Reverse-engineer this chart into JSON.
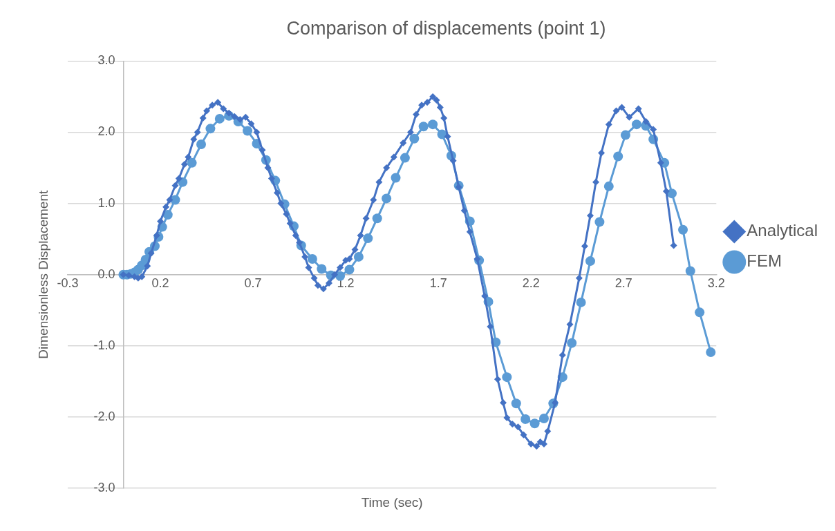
{
  "chart_data": {
    "type": "line",
    "title": "Comparison of displacements (point 1)",
    "xlabel": "Time (sec)",
    "ylabel": "Dimensionless Displacement",
    "xlim": [
      -0.3,
      3.2
    ],
    "xticks": [
      -0.3,
      0.2,
      0.7,
      1.2,
      1.7,
      2.2,
      2.7,
      3.2
    ],
    "ylim": [
      -3,
      3
    ],
    "yticks": [
      {
        "value": -3,
        "label": "-3.0"
      },
      {
        "value": -2,
        "label": "-2.0"
      },
      {
        "value": -1,
        "label": "-1.0"
      },
      {
        "value": 0,
        "label": "0.0"
      },
      {
        "value": 1,
        "label": "1.0"
      },
      {
        "value": 2,
        "label": "2.0"
      },
      {
        "value": 3,
        "label": "3.0"
      }
    ],
    "grid": "y",
    "legend": "right",
    "series": [
      {
        "name": "Analytical",
        "color": "#4472c4",
        "marker": "diamond",
        "x": [
          0,
          0.03,
          0.06,
          0.08,
          0.1,
          0.13,
          0.15,
          0.18,
          0.2,
          0.23,
          0.25,
          0.28,
          0.3,
          0.33,
          0.35,
          0.38,
          0.4,
          0.43,
          0.45,
          0.48,
          0.51,
          0.54,
          0.57,
          0.6,
          0.63,
          0.66,
          0.69,
          0.72,
          0.75,
          0.78,
          0.8,
          0.83,
          0.85,
          0.88,
          0.9,
          0.93,
          0.95,
          0.98,
          1.0,
          1.03,
          1.05,
          1.08,
          1.11,
          1.14,
          1.17,
          1.2,
          1.22,
          1.25,
          1.28,
          1.31,
          1.35,
          1.38,
          1.42,
          1.46,
          1.51,
          1.55,
          1.58,
          1.61,
          1.64,
          1.67,
          1.69,
          1.71,
          1.73,
          1.75,
          1.78,
          1.81,
          1.84,
          1.87,
          1.91,
          1.95,
          1.98,
          2.02,
          2.05,
          2.07,
          2.1,
          2.13,
          2.16,
          2.2,
          2.23,
          2.25,
          2.27,
          2.29,
          2.33,
          2.37,
          2.41,
          2.46,
          2.49,
          2.52,
          2.55,
          2.58,
          2.62,
          2.66,
          2.69,
          2.73,
          2.78,
          2.82,
          2.86,
          2.9,
          2.93,
          2.97
        ],
        "values": [
          0,
          -0.01,
          -0.03,
          -0.05,
          -0.03,
          0.12,
          0.3,
          0.55,
          0.75,
          0.95,
          1.05,
          1.25,
          1.35,
          1.55,
          1.65,
          1.9,
          2.0,
          2.2,
          2.3,
          2.38,
          2.42,
          2.33,
          2.27,
          2.22,
          2.18,
          2.21,
          2.12,
          2.0,
          1.75,
          1.5,
          1.35,
          1.15,
          1.0,
          0.85,
          0.72,
          0.55,
          0.45,
          0.25,
          0.1,
          -0.05,
          -0.15,
          -0.2,
          -0.12,
          0.0,
          0.1,
          0.2,
          0.22,
          0.35,
          0.55,
          0.79,
          1.05,
          1.3,
          1.5,
          1.65,
          1.85,
          2.0,
          2.25,
          2.38,
          2.42,
          2.5,
          2.45,
          2.35,
          2.2,
          1.94,
          1.6,
          1.23,
          0.9,
          0.6,
          0.22,
          -0.3,
          -0.73,
          -1.47,
          -1.8,
          -2.01,
          -2.1,
          -2.14,
          -2.25,
          -2.38,
          -2.41,
          -2.35,
          -2.38,
          -2.2,
          -1.8,
          -1.13,
          -0.7,
          -0.05,
          0.4,
          0.83,
          1.3,
          1.71,
          2.11,
          2.3,
          2.35,
          2.21,
          2.33,
          2.15,
          2.04,
          1.57,
          1.17,
          0.41
        ]
      },
      {
        "name": "FEM",
        "color": "#5b9bd5",
        "marker": "circle",
        "x": [
          0,
          0.02,
          0.04,
          0.06,
          0.08,
          0.1,
          0.12,
          0.14,
          0.17,
          0.19,
          0.21,
          0.24,
          0.28,
          0.32,
          0.37,
          0.42,
          0.47,
          0.52,
          0.57,
          0.62,
          0.67,
          0.72,
          0.77,
          0.82,
          0.87,
          0.92,
          0.96,
          1.02,
          1.07,
          1.12,
          1.17,
          1.22,
          1.27,
          1.32,
          1.37,
          1.42,
          1.47,
          1.52,
          1.57,
          1.62,
          1.67,
          1.72,
          1.77,
          1.81,
          1.87,
          1.92,
          1.97,
          2.01,
          2.07,
          2.12,
          2.17,
          2.22,
          2.27,
          2.32,
          2.37,
          2.42,
          2.47,
          2.52,
          2.57,
          2.62,
          2.67,
          2.71,
          2.77,
          2.82,
          2.86,
          2.92,
          2.96,
          3.02,
          3.06,
          3.11,
          3.17
        ],
        "values": [
          0,
          0,
          0.01,
          0.03,
          0.07,
          0.13,
          0.21,
          0.32,
          0.4,
          0.53,
          0.67,
          0.84,
          1.05,
          1.3,
          1.57,
          1.83,
          2.05,
          2.19,
          2.23,
          2.15,
          2.02,
          1.84,
          1.61,
          1.32,
          0.99,
          0.68,
          0.41,
          0.22,
          0.08,
          -0.01,
          -0.02,
          0.07,
          0.25,
          0.51,
          0.79,
          1.07,
          1.36,
          1.64,
          1.91,
          2.08,
          2.11,
          1.97,
          1.67,
          1.25,
          0.75,
          0.2,
          -0.38,
          -0.95,
          -1.44,
          -1.81,
          -2.03,
          -2.09,
          -2.02,
          -1.81,
          -1.44,
          -0.96,
          -0.39,
          0.19,
          0.74,
          1.24,
          1.66,
          1.96,
          2.11,
          2.09,
          1.9,
          1.57,
          1.14,
          0.63,
          0.05,
          -0.53,
          -1.09
        ]
      }
    ]
  }
}
